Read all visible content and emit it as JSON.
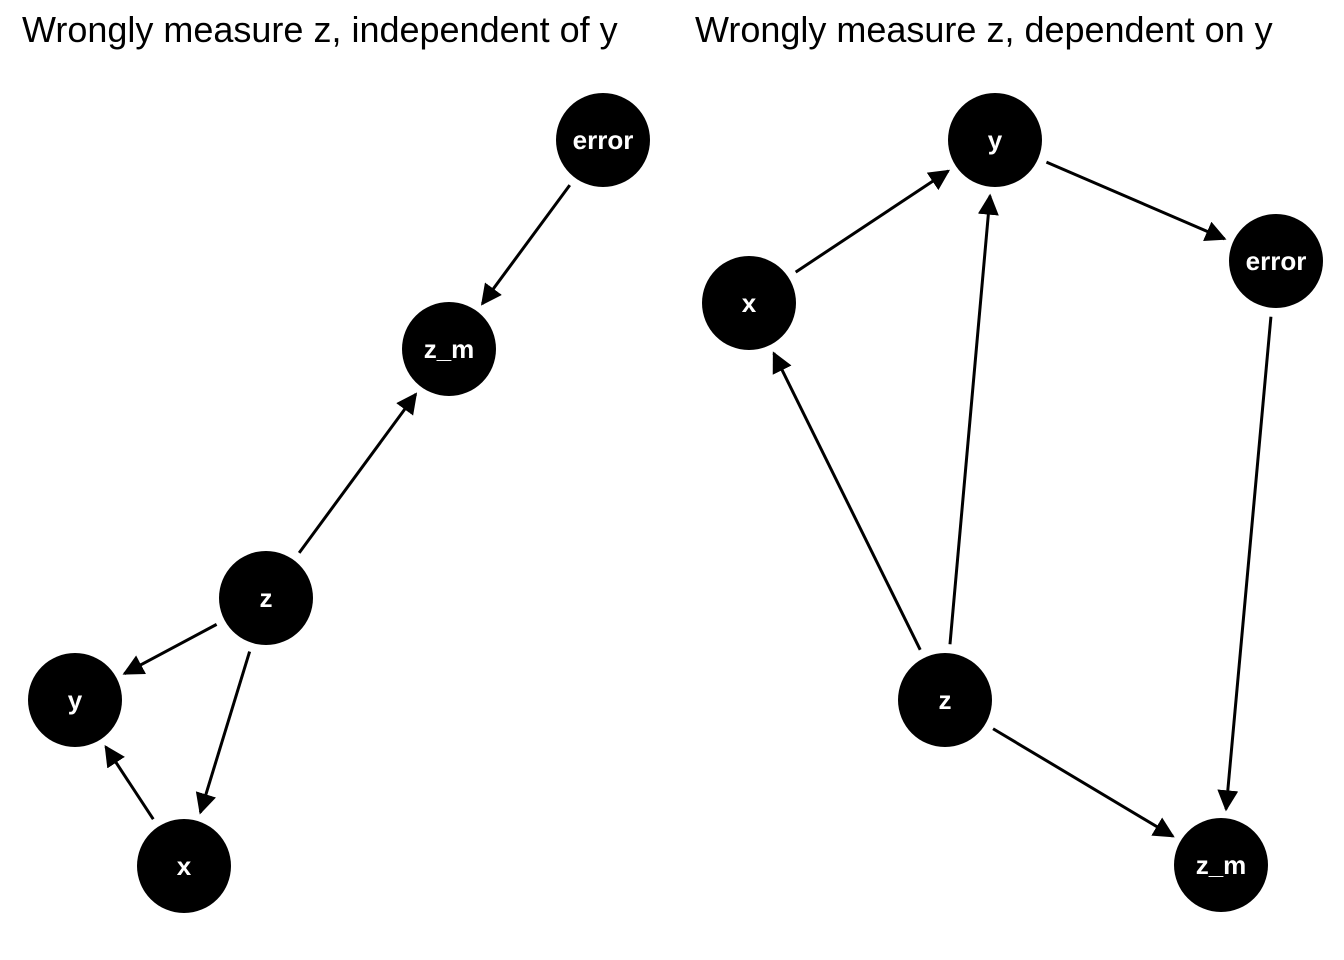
{
  "panels": [
    {
      "title": "Wrongly measure z, independent of y",
      "nodes": [
        {
          "id": "error",
          "label": "error"
        },
        {
          "id": "z_m",
          "label": "z_m"
        },
        {
          "id": "z",
          "label": "z"
        },
        {
          "id": "y",
          "label": "y"
        },
        {
          "id": "x",
          "label": "x"
        }
      ],
      "edges": [
        {
          "from": "error",
          "to": "z_m"
        },
        {
          "from": "z",
          "to": "z_m"
        },
        {
          "from": "z",
          "to": "y"
        },
        {
          "from": "z",
          "to": "x"
        },
        {
          "from": "x",
          "to": "y"
        }
      ]
    },
    {
      "title": "Wrongly measure z, dependent on y",
      "nodes": [
        {
          "id": "y",
          "label": "y"
        },
        {
          "id": "x",
          "label": "x"
        },
        {
          "id": "error",
          "label": "error"
        },
        {
          "id": "z",
          "label": "z"
        },
        {
          "id": "z_m",
          "label": "z_m"
        }
      ],
      "edges": [
        {
          "from": "x",
          "to": "y"
        },
        {
          "from": "y",
          "to": "error"
        },
        {
          "from": "z",
          "to": "x"
        },
        {
          "from": "z",
          "to": "y"
        },
        {
          "from": "error",
          "to": "z_m"
        },
        {
          "from": "z",
          "to": "z_m"
        }
      ]
    }
  ],
  "colors": {
    "node_fill": "#000000",
    "node_text": "#ffffff",
    "edge": "#000000",
    "background": "#ffffff"
  }
}
